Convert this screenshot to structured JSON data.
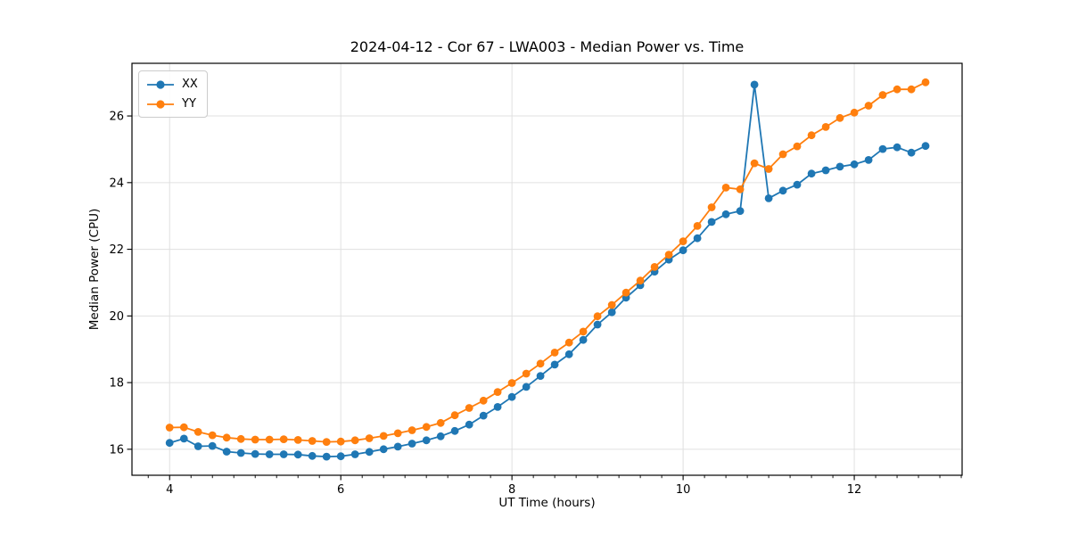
{
  "chart_data": {
    "type": "line",
    "title": "2024-04-12 - Cor 67 - LWA003 - Median Power vs. Time",
    "xlabel": "UT Time (hours)",
    "ylabel": "Median Power (CPU)",
    "xlim": [
      3.56,
      13.26
    ],
    "ylim": [
      15.22,
      27.58
    ],
    "x_ticks": [
      4,
      6,
      8,
      10,
      12
    ],
    "y_ticks": [
      16,
      18,
      20,
      22,
      24,
      26
    ],
    "x_minor_tick_step": 0.25,
    "grid": true,
    "grid_color": "#e0e0e0",
    "legend_position": "upper-left",
    "x": [
      4.0,
      4.167,
      4.333,
      4.5,
      4.667,
      4.833,
      5.0,
      5.167,
      5.333,
      5.5,
      5.667,
      5.833,
      6.0,
      6.167,
      6.333,
      6.5,
      6.667,
      6.833,
      7.0,
      7.167,
      7.333,
      7.5,
      7.667,
      7.833,
      8.0,
      8.167,
      8.333,
      8.5,
      8.667,
      8.833,
      9.0,
      9.167,
      9.333,
      9.5,
      9.667,
      9.833,
      10.0,
      10.167,
      10.333,
      10.5,
      10.667,
      10.833,
      11.0,
      11.167,
      11.333,
      11.5,
      11.667,
      11.833,
      12.0,
      12.167,
      12.333,
      12.5,
      12.667,
      12.833
    ],
    "series": [
      {
        "name": "XX",
        "color": "#1f77b4",
        "values": [
          16.19,
          16.32,
          16.09,
          16.1,
          15.93,
          15.89,
          15.86,
          15.85,
          15.85,
          15.84,
          15.8,
          15.78,
          15.79,
          15.85,
          15.92,
          16.0,
          16.08,
          16.17,
          16.27,
          16.39,
          16.55,
          16.74,
          17.01,
          17.27,
          17.57,
          17.87,
          18.2,
          18.54,
          18.85,
          19.28,
          19.74,
          20.11,
          20.55,
          20.92,
          21.33,
          21.69,
          21.97,
          22.33,
          22.82,
          23.05,
          23.15,
          26.94,
          23.53,
          23.76,
          23.94,
          24.27,
          24.37,
          24.48,
          24.55,
          24.68,
          25.01,
          25.06,
          24.9,
          25.1
        ]
      },
      {
        "name": "YY",
        "color": "#ff7f0e",
        "values": [
          16.65,
          16.66,
          16.52,
          16.42,
          16.35,
          16.31,
          16.29,
          16.29,
          16.3,
          16.28,
          16.25,
          16.22,
          16.23,
          16.27,
          16.33,
          16.4,
          16.48,
          16.57,
          16.67,
          16.79,
          17.02,
          17.24,
          17.46,
          17.72,
          17.99,
          18.27,
          18.57,
          18.9,
          19.2,
          19.53,
          19.99,
          20.33,
          20.7,
          21.06,
          21.47,
          21.84,
          22.24,
          22.7,
          23.26,
          23.85,
          23.8,
          24.58,
          24.41,
          24.85,
          25.09,
          25.42,
          25.67,
          25.94,
          26.1,
          26.31,
          26.63,
          26.8,
          26.8,
          27.01
        ]
      }
    ]
  }
}
